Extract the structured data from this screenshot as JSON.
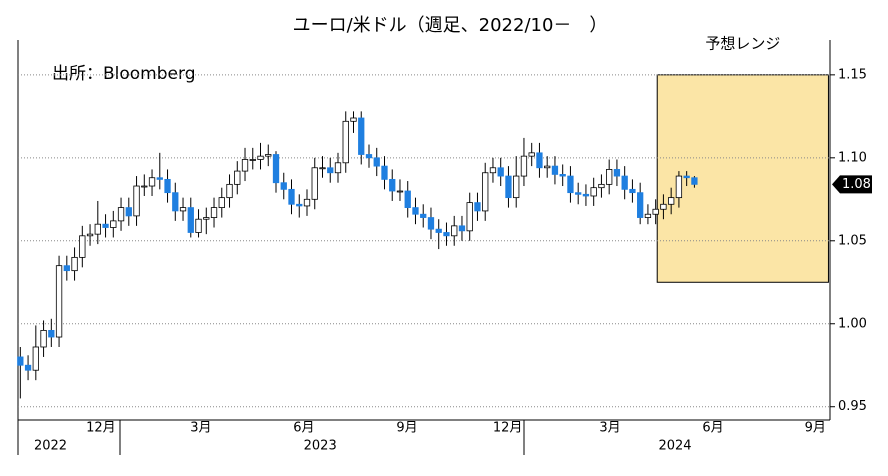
{
  "chart_data": {
    "type": "candlestick",
    "title": "ユーロ/米ドル（週足、2022/10－　）",
    "source": "出所：Bloomberg",
    "categories": [
      null,
      null,
      null,
      null,
      null,
      null,
      null,
      null,
      null,
      null,
      null,
      null,
      null,
      null,
      null,
      null,
      null,
      null,
      null,
      null,
      null,
      null,
      null,
      null,
      null,
      null,
      null,
      null,
      null,
      null,
      null,
      null,
      null,
      null,
      null,
      null,
      null,
      null,
      null,
      null,
      null,
      null,
      null,
      null,
      null,
      null,
      null,
      null,
      null,
      null,
      null,
      null,
      null,
      null,
      null,
      null,
      null,
      null,
      null,
      null,
      null,
      null,
      null,
      null,
      null,
      null,
      null,
      null,
      null,
      null,
      null,
      null,
      null,
      null,
      null,
      null,
      null,
      null,
      null,
      null,
      null,
      null,
      null,
      null,
      null,
      null,
      null,
      null
    ],
    "open": [
      0.98,
      0.975,
      0.972,
      0.986,
      0.996,
      0.992,
      1.035,
      1.032,
      1.04,
      1.053,
      1.054,
      1.06,
      1.058,
      1.062,
      1.07,
      1.065,
      1.083,
      1.083,
      1.088,
      1.087,
      1.079,
      1.068,
      1.07,
      1.055,
      1.063,
      1.064,
      1.07,
      1.076,
      1.084,
      1.092,
      1.099,
      1.099,
      1.101,
      1.102,
      1.085,
      1.081,
      1.072,
      1.071,
      1.075,
      1.094,
      1.094,
      1.091,
      1.097,
      1.122,
      1.124,
      1.102,
      1.1,
      1.095,
      1.087,
      1.08,
      1.08,
      1.07,
      1.066,
      1.064,
      1.057,
      1.055,
      1.053,
      1.059,
      1.056,
      1.073,
      1.068,
      1.091,
      1.094,
      1.089,
      1.076,
      1.089,
      1.101,
      1.103,
      1.094,
      1.095,
      1.09,
      1.089,
      1.079,
      1.078,
      1.077,
      1.082,
      1.084,
      1.093,
      1.089,
      1.081,
      1.079,
      1.064,
      1.066,
      1.069,
      1.072,
      1.076,
      1.089,
      1.088
    ],
    "high": [
      0.986,
      0.981,
      0.999,
      1.002,
      1.003,
      1.041,
      1.041,
      1.046,
      1.059,
      1.06,
      1.074,
      1.066,
      1.068,
      1.076,
      1.076,
      1.089,
      1.09,
      1.093,
      1.103,
      1.093,
      1.085,
      1.076,
      1.076,
      1.069,
      1.07,
      1.076,
      1.082,
      1.09,
      1.098,
      1.106,
      1.106,
      1.109,
      1.108,
      1.104,
      1.091,
      1.087,
      1.078,
      1.081,
      1.1,
      1.101,
      1.1,
      1.103,
      1.128,
      1.128,
      1.128,
      1.108,
      1.106,
      1.101,
      1.093,
      1.087,
      1.086,
      1.076,
      1.072,
      1.07,
      1.063,
      1.061,
      1.065,
      1.065,
      1.079,
      1.079,
      1.097,
      1.1,
      1.1,
      1.095,
      1.101,
      1.112,
      1.109,
      1.109,
      1.101,
      1.101,
      1.096,
      1.095,
      1.085,
      1.084,
      1.088,
      1.09,
      1.099,
      1.099,
      1.095,
      1.087,
      1.085,
      1.072,
      1.075,
      1.078,
      1.082,
      1.092,
      1.092,
      1.089
    ],
    "low": [
      0.955,
      0.966,
      0.966,
      0.98,
      0.986,
      0.986,
      1.026,
      1.026,
      1.034,
      1.047,
      1.048,
      1.052,
      1.052,
      1.056,
      1.059,
      1.059,
      1.077,
      1.077,
      1.081,
      1.073,
      1.062,
      1.062,
      1.052,
      1.052,
      1.054,
      1.058,
      1.064,
      1.07,
      1.078,
      1.086,
      1.093,
      1.093,
      1.095,
      1.079,
      1.075,
      1.066,
      1.064,
      1.065,
      1.069,
      1.088,
      1.085,
      1.085,
      1.091,
      1.115,
      1.096,
      1.094,
      1.089,
      1.081,
      1.074,
      1.074,
      1.064,
      1.06,
      1.058,
      1.051,
      1.045,
      1.047,
      1.047,
      1.05,
      1.05,
      1.062,
      1.062,
      1.085,
      1.083,
      1.07,
      1.07,
      1.083,
      1.095,
      1.088,
      1.088,
      1.084,
      1.083,
      1.073,
      1.072,
      1.071,
      1.071,
      1.076,
      1.078,
      1.083,
      1.075,
      1.073,
      1.06,
      1.06,
      1.06,
      1.063,
      1.066,
      1.07,
      1.083,
      1.082
    ],
    "close": [
      0.975,
      0.972,
      0.986,
      0.996,
      0.992,
      1.035,
      1.032,
      1.04,
      1.053,
      1.054,
      1.06,
      1.058,
      1.062,
      1.07,
      1.065,
      1.083,
      1.083,
      1.088,
      1.087,
      1.079,
      1.068,
      1.07,
      1.055,
      1.063,
      1.064,
      1.07,
      1.076,
      1.084,
      1.092,
      1.099,
      1.099,
      1.101,
      1.102,
      1.085,
      1.081,
      1.072,
      1.071,
      1.075,
      1.094,
      1.094,
      1.091,
      1.097,
      1.122,
      1.124,
      1.102,
      1.1,
      1.095,
      1.087,
      1.08,
      1.08,
      1.07,
      1.066,
      1.064,
      1.057,
      1.055,
      1.053,
      1.059,
      1.056,
      1.073,
      1.068,
      1.091,
      1.094,
      1.089,
      1.076,
      1.089,
      1.101,
      1.103,
      1.094,
      1.095,
      1.09,
      1.089,
      1.079,
      1.078,
      1.077,
      1.082,
      1.084,
      1.093,
      1.089,
      1.081,
      1.079,
      1.064,
      1.066,
      1.069,
      1.072,
      1.076,
      1.089,
      1.088,
      1.084
    ],
    "up_color": "#ffffff",
    "down_color": "#1f7fe0",
    "xlim": [
      -0.3,
      104.5
    ],
    "xticks": [
      {
        "value": 10.4,
        "label": "12月"
      },
      {
        "value": 23.3,
        "label": "3月"
      },
      {
        "value": 36.6,
        "label": "6月"
      },
      {
        "value": 49.9,
        "label": "9月"
      },
      {
        "value": 62.9,
        "label": "12月"
      },
      {
        "value": 76.1,
        "label": "3月"
      },
      {
        "value": 89.4,
        "label": "6月"
      },
      {
        "value": 102.6,
        "label": "9月"
      }
    ],
    "year_labels": [
      {
        "value": 3.9,
        "label": "2022"
      },
      {
        "value": 38.7,
        "label": "2023"
      },
      {
        "value": 84.5,
        "label": "2024"
      }
    ],
    "ylim": [
      0.942,
      1.171
    ],
    "yticks": [
      0.95,
      {
        "value": 1,
        "label": "1.00"
      },
      1.05,
      {
        "value": 1.1,
        "label": "1.10"
      },
      1.15
    ],
    "grid": true,
    "forecast": {
      "label": "予想レンジ",
      "x_range": [
        82.2,
        104.3
      ],
      "y_range": [
        1.025,
        1.15
      ],
      "color": "#fbe5a6"
    },
    "last_price": {
      "value": 1.084,
      "label": "1.08"
    }
  }
}
